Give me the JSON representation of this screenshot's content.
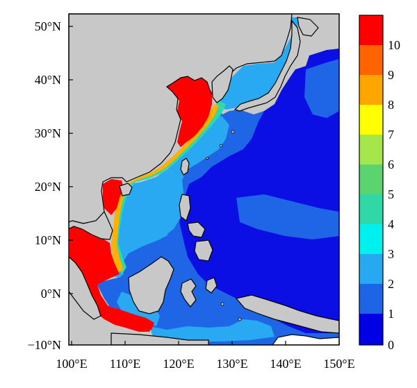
{
  "map": {
    "longitude_ticks": [
      "100°E",
      "110°E",
      "120°E",
      "130°E",
      "140°E",
      "150°E"
    ],
    "latitude_ticks": [
      "50°N",
      "40°N",
      "30°N",
      "20°N",
      "10°N",
      "0°N",
      "−10°N"
    ],
    "extent": {
      "lon": [
        99,
        150
      ],
      "lat": [
        -10,
        52
      ]
    },
    "land_color": "#c8c8c8",
    "coastline_color": "#000000"
  },
  "colorbar": {
    "labels": [
      "10",
      "9",
      "8",
      "7",
      "6",
      "5",
      "4",
      "3",
      "2",
      "1",
      "0"
    ],
    "colors": [
      "#ff0000",
      "#ff6400",
      "#ffa500",
      "#ffff00",
      "#a6e64d",
      "#5ad46e",
      "#30d8a8",
      "#00f0f0",
      "#28a8f0",
      "#1e64e6",
      "#0000e6"
    ]
  }
}
